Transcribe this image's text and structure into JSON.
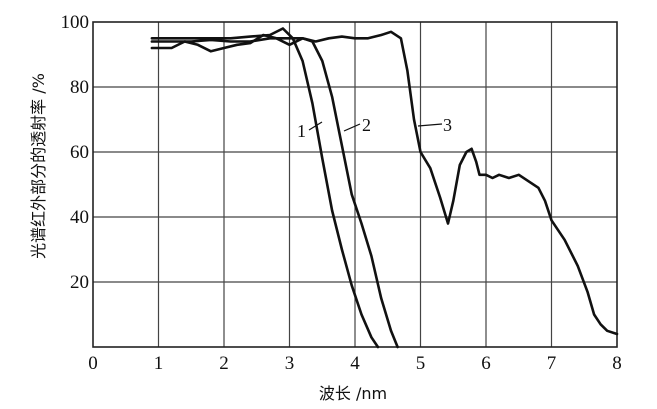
{
  "chart_data": {
    "type": "line",
    "xlabel": "波长 /nm",
    "ylabel": "光谱红外部分的透射率 /%",
    "xlim": [
      0,
      8
    ],
    "ylim": [
      0,
      100
    ],
    "x_ticks": [
      "0",
      "1",
      "2",
      "3",
      "4",
      "5",
      "6",
      "7",
      "8"
    ],
    "y_ticks": [
      "20",
      "40",
      "60",
      "80",
      "100"
    ],
    "grid": true,
    "series": [
      {
        "name": "1",
        "x": [
          0.9,
          1.2,
          1.5,
          1.8,
          2.1,
          2.4,
          2.7,
          2.9,
          3.05,
          3.2,
          3.35,
          3.5,
          3.65,
          3.8,
          3.95,
          4.1,
          4.25,
          4.35
        ],
        "y": [
          95,
          95,
          95,
          95,
          95,
          95.5,
          96,
          98,
          95,
          88,
          75,
          58,
          42,
          30,
          19,
          10,
          3,
          0
        ]
      },
      {
        "name": "2",
        "x": [
          0.9,
          1.2,
          1.5,
          1.8,
          2.1,
          2.4,
          2.7,
          3.0,
          3.2,
          3.35,
          3.5,
          3.65,
          3.8,
          3.95,
          4.1,
          4.25,
          4.4,
          4.55,
          4.65
        ],
        "y": [
          94,
          94,
          94,
          94.5,
          94,
          94,
          95,
          95,
          95,
          94,
          88,
          77,
          62,
          47,
          38,
          28,
          15,
          5,
          0
        ]
      },
      {
        "name": "3",
        "x": [
          0.9,
          1.2,
          1.4,
          1.6,
          1.8,
          2.0,
          2.2,
          2.4,
          2.6,
          2.8,
          3.0,
          3.2,
          3.4,
          3.6,
          3.8,
          4.0,
          4.2,
          4.4,
          4.55,
          4.7,
          4.8,
          4.9,
          5.0,
          5.15,
          5.3,
          5.42,
          5.5,
          5.6,
          5.7,
          5.78,
          5.85,
          5.9,
          6.0,
          6.1,
          6.2,
          6.35,
          6.5,
          6.65,
          6.8,
          6.9,
          7.0,
          7.2,
          7.4,
          7.55,
          7.65,
          7.75,
          7.85,
          8.0
        ],
        "y": [
          92,
          92,
          94,
          93,
          91,
          92,
          93,
          93.5,
          96,
          95,
          93,
          95,
          94,
          95,
          95.5,
          95,
          95,
          96,
          97,
          95,
          85,
          70,
          60,
          55,
          46,
          38,
          45,
          56,
          60,
          61,
          57,
          53,
          53,
          52,
          53,
          52,
          53,
          51,
          49,
          45,
          39,
          33,
          25,
          17,
          10,
          7,
          5,
          4
        ]
      }
    ]
  }
}
